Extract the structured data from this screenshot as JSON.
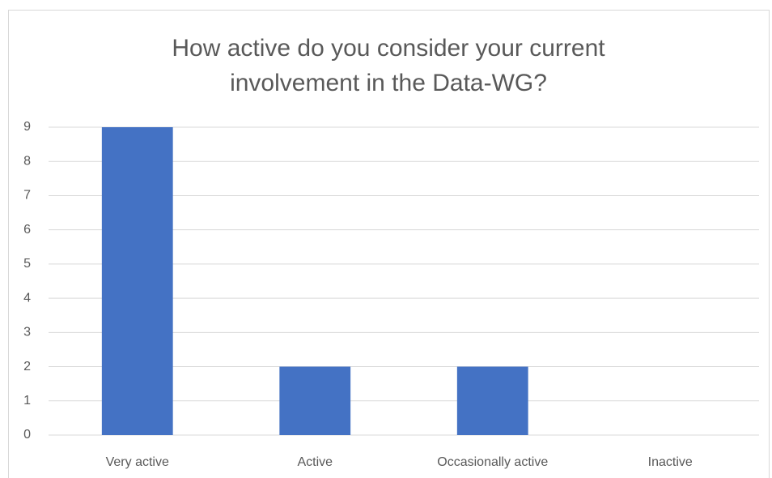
{
  "chart_data": {
    "type": "bar",
    "title": "How active do you consider your current involvement in the Data-WG?",
    "categories": [
      "Very active",
      "Active",
      "Occasionally active",
      "Inactive"
    ],
    "values": [
      9,
      2,
      2,
      0
    ],
    "color": "#4472c4",
    "ylim": [
      0,
      9
    ],
    "yticks": [
      0,
      1,
      2,
      3,
      4,
      5,
      6,
      7,
      8,
      9
    ],
    "grid": true
  }
}
